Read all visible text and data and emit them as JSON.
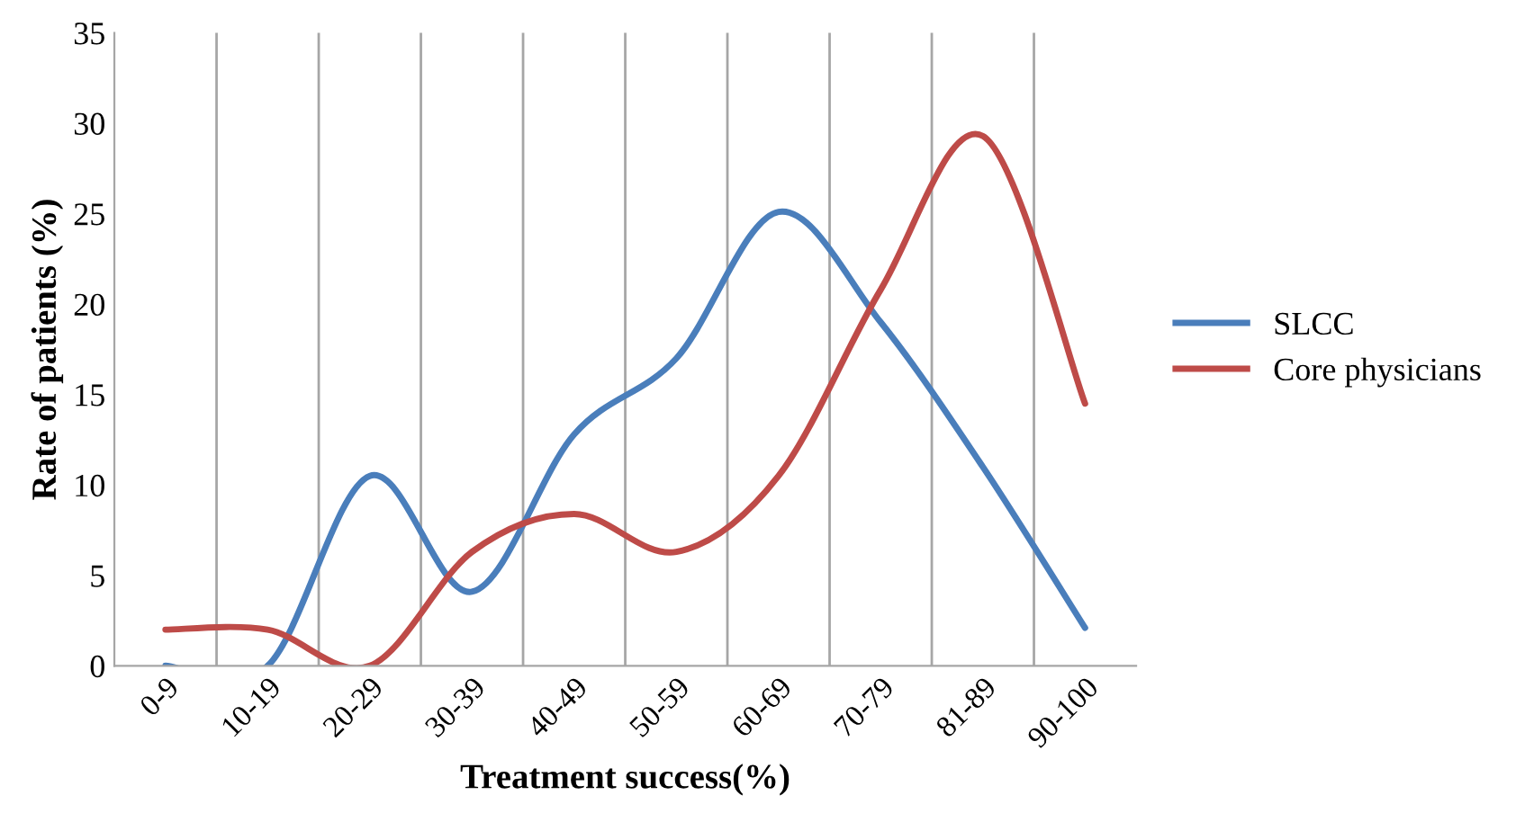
{
  "chart_data": {
    "type": "line",
    "xlabel": "Treatment success(%)",
    "ylabel": "Rate of patients (%)",
    "categories": [
      "0-9",
      "10-19",
      "20-29",
      "30-39",
      "40-49",
      "50-59",
      "60-69",
      "70-79",
      "81-89",
      "90-100"
    ],
    "series": [
      {
        "name": "SLCC",
        "color": "#4a7ebb",
        "values": [
          0,
          0,
          10.5,
          4.1,
          12.8,
          17,
          25.1,
          19,
          11,
          2.1
        ]
      },
      {
        "name": "Core physicians",
        "color": "#be4b48",
        "values": [
          2,
          2,
          0,
          6.3,
          8.4,
          6.3,
          10.5,
          20.8,
          29.3,
          14.5
        ]
      }
    ],
    "ylim": [
      0,
      35
    ],
    "yticks": [
      0,
      5,
      10,
      15,
      20,
      25,
      30,
      35
    ],
    "grid": "x",
    "legend": "right",
    "marker": "none",
    "line_style": "solid"
  }
}
